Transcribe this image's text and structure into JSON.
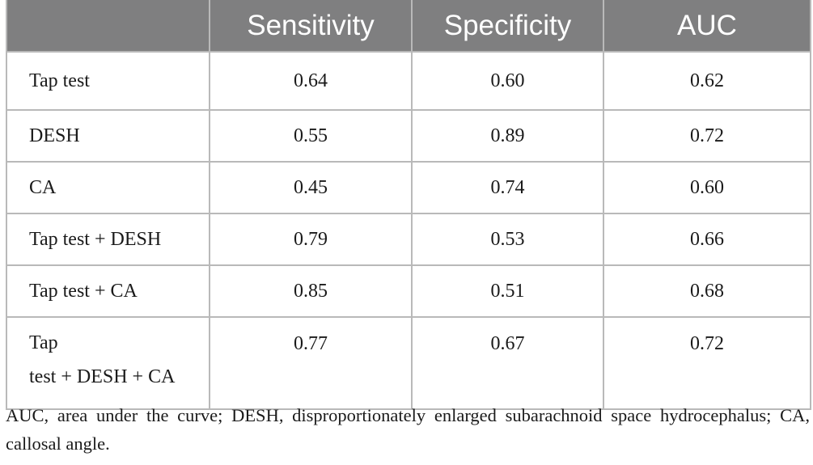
{
  "table": {
    "headers": [
      "",
      "Sensitivity",
      "Specificity",
      "AUC"
    ],
    "rows": [
      {
        "label": "Tap test",
        "sensitivity": "0.64",
        "specificity": "0.60",
        "auc": "0.62"
      },
      {
        "label": "DESH",
        "sensitivity": "0.55",
        "specificity": "0.89",
        "auc": "0.72"
      },
      {
        "label": "CA",
        "sensitivity": "0.45",
        "specificity": "0.74",
        "auc": "0.60"
      },
      {
        "label": "Tap test + DESH",
        "sensitivity": "0.79",
        "specificity": "0.53",
        "auc": "0.66"
      },
      {
        "label": "Tap test + CA",
        "sensitivity": "0.85",
        "specificity": "0.51",
        "auc": "0.68"
      },
      {
        "label_line1": "Tap",
        "label_line2": "test + DESH + CA",
        "sensitivity": "0.77",
        "specificity": "0.67",
        "auc": "0.72"
      }
    ]
  },
  "footnote": "AUC, area under the curve; DESH, disproportionately enlarged subarachnoid space hydrocephalus; CA, callosal angle."
}
